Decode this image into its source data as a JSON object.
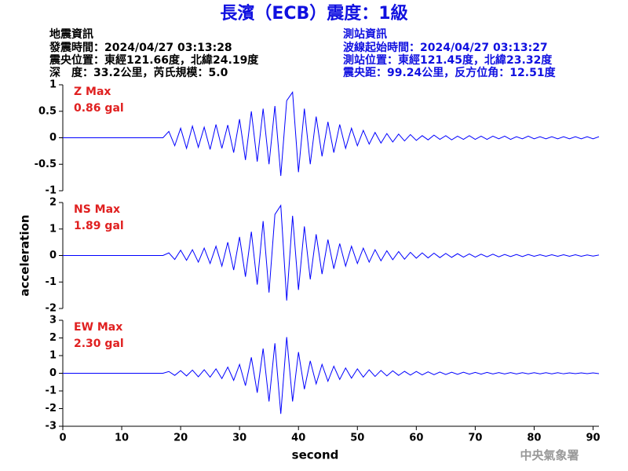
{
  "header": {
    "title": "長濱（ECB）震度：1級",
    "event": [
      "地震資訊",
      "發震時間：2024/04/27 03:13:28",
      "震央位置：東經121.66度，北緯24.19度",
      "深　度：33.2公里，芮氏規模：5.0"
    ],
    "station": [
      "測站資訊",
      "波線起始時間：2024/04/27 03:13:27",
      "測站位置：東經121.45度，北緯23.32度",
      "震央距：99.24公里，反方位角：12.51度"
    ]
  },
  "footer": "中央氣象署",
  "chart_data": [
    {
      "type": "line",
      "annotation": [
        "Z Max",
        "0.86 gal"
      ],
      "color": "#0000ff",
      "xlim": [
        0,
        91
      ],
      "ylim": [
        -1,
        1
      ],
      "yticks": [
        -1,
        -0.5,
        0,
        0.5,
        1
      ],
      "x": [
        0,
        1,
        2,
        3,
        4,
        5,
        6,
        7,
        8,
        9,
        10,
        11,
        12,
        13,
        14,
        15,
        16,
        17,
        18,
        19,
        20,
        21,
        22,
        23,
        24,
        25,
        26,
        27,
        28,
        29,
        30,
        31,
        32,
        33,
        34,
        35,
        36,
        37,
        38,
        39,
        40,
        41,
        42,
        43,
        44,
        45,
        46,
        47,
        48,
        49,
        50,
        51,
        52,
        53,
        54,
        55,
        56,
        57,
        58,
        59,
        60,
        61,
        62,
        63,
        64,
        65,
        66,
        67,
        68,
        69,
        70,
        71,
        72,
        73,
        74,
        75,
        76,
        77,
        78,
        79,
        80,
        81,
        82,
        83,
        84,
        85,
        86,
        87,
        88,
        89,
        90,
        91
      ],
      "values": [
        0,
        0,
        0,
        0,
        0,
        0,
        0,
        0,
        0,
        0,
        0,
        0,
        0,
        0,
        0,
        0,
        0,
        0,
        0.12,
        -0.15,
        0.18,
        -0.2,
        0.22,
        -0.18,
        0.2,
        -0.22,
        0.25,
        -0.2,
        0.24,
        -0.28,
        0.35,
        -0.42,
        0.5,
        -0.45,
        0.55,
        -0.5,
        0.6,
        -0.72,
        0.7,
        0.86,
        -0.65,
        0.55,
        -0.5,
        0.4,
        -0.35,
        0.3,
        -0.28,
        0.25,
        -0.2,
        0.18,
        -0.15,
        0.14,
        -0.12,
        0.1,
        -0.1,
        0.08,
        -0.08,
        0.07,
        -0.06,
        0.06,
        -0.05,
        0.04,
        -0.04,
        0.05,
        -0.03,
        0.04,
        -0.04,
        0.03,
        -0.03,
        0.04,
        -0.03,
        0.03,
        -0.03,
        0.03,
        -0.02,
        0.03,
        -0.03,
        0.02,
        -0.02,
        0.03,
        -0.02,
        0.02,
        -0.02,
        0.02,
        -0.02,
        0.02,
        -0.02,
        0.02,
        -0.02,
        0.02,
        -0.02,
        0.02
      ]
    },
    {
      "type": "line",
      "annotation": [
        "NS Max",
        "1.89 gal"
      ],
      "color": "#0000ff",
      "ylabel": "acceleration",
      "xlim": [
        0,
        91
      ],
      "ylim": [
        -2,
        2
      ],
      "yticks": [
        -2,
        -1,
        0,
        1,
        2
      ],
      "x": [
        0,
        1,
        2,
        3,
        4,
        5,
        6,
        7,
        8,
        9,
        10,
        11,
        12,
        13,
        14,
        15,
        16,
        17,
        18,
        19,
        20,
        21,
        22,
        23,
        24,
        25,
        26,
        27,
        28,
        29,
        30,
        31,
        32,
        33,
        34,
        35,
        36,
        37,
        38,
        39,
        40,
        41,
        42,
        43,
        44,
        45,
        46,
        47,
        48,
        49,
        50,
        51,
        52,
        53,
        54,
        55,
        56,
        57,
        58,
        59,
        60,
        61,
        62,
        63,
        64,
        65,
        66,
        67,
        68,
        69,
        70,
        71,
        72,
        73,
        74,
        75,
        76,
        77,
        78,
        79,
        80,
        81,
        82,
        83,
        84,
        85,
        86,
        87,
        88,
        89,
        90,
        91
      ],
      "values": [
        0,
        0,
        0,
        0,
        0,
        0,
        0,
        0,
        0,
        0,
        0,
        0,
        0,
        0,
        0,
        0,
        0,
        0,
        0.1,
        -0.15,
        0.2,
        -0.18,
        0.22,
        -0.25,
        0.28,
        -0.3,
        0.35,
        -0.4,
        0.5,
        -0.55,
        0.7,
        -0.8,
        0.9,
        -1.1,
        1.3,
        -1.4,
        1.55,
        1.89,
        -1.7,
        1.5,
        -1.3,
        1.1,
        -0.9,
        0.8,
        -0.7,
        0.6,
        -0.5,
        0.45,
        -0.4,
        0.35,
        -0.3,
        0.28,
        -0.25,
        0.22,
        -0.2,
        0.18,
        -0.16,
        0.15,
        -0.14,
        0.12,
        -0.1,
        0.1,
        -0.09,
        0.09,
        -0.08,
        0.08,
        -0.07,
        0.07,
        -0.06,
        0.06,
        -0.06,
        0.05,
        -0.05,
        0.05,
        -0.05,
        0.04,
        -0.04,
        0.04,
        -0.04,
        0.04,
        -0.03,
        0.03,
        -0.03,
        0.03,
        -0.03,
        0.03,
        -0.03,
        0.03,
        -0.03,
        0.02,
        -0.02,
        0.02
      ]
    },
    {
      "type": "line",
      "annotation": [
        "EW Max",
        "2.30 gal"
      ],
      "color": "#0000ff",
      "xlabel": "second",
      "xlim": [
        0,
        91
      ],
      "ylim": [
        -3,
        3
      ],
      "yticks": [
        -3,
        -2,
        -1,
        0,
        1,
        2,
        3
      ],
      "xticks": [
        0,
        10,
        20,
        30,
        40,
        50,
        60,
        70,
        80,
        90
      ],
      "x": [
        0,
        1,
        2,
        3,
        4,
        5,
        6,
        7,
        8,
        9,
        10,
        11,
        12,
        13,
        14,
        15,
        16,
        17,
        18,
        19,
        20,
        21,
        22,
        23,
        24,
        25,
        26,
        27,
        28,
        29,
        30,
        31,
        32,
        33,
        34,
        35,
        36,
        37,
        38,
        39,
        40,
        41,
        42,
        43,
        44,
        45,
        46,
        47,
        48,
        49,
        50,
        51,
        52,
        53,
        54,
        55,
        56,
        57,
        58,
        59,
        60,
        61,
        62,
        63,
        64,
        65,
        66,
        67,
        68,
        69,
        70,
        71,
        72,
        73,
        74,
        75,
        76,
        77,
        78,
        79,
        80,
        81,
        82,
        83,
        84,
        85,
        86,
        87,
        88,
        89,
        90,
        91
      ],
      "values": [
        0,
        0,
        0,
        0,
        0,
        0,
        0,
        0,
        0,
        0,
        0,
        0,
        0,
        0,
        0,
        0,
        0,
        0,
        0.1,
        -0.12,
        0.15,
        -0.15,
        0.18,
        -0.2,
        0.2,
        -0.22,
        0.25,
        -0.3,
        0.35,
        -0.4,
        0.5,
        -0.7,
        0.9,
        -1.1,
        1.4,
        -1.6,
        1.7,
        -2.3,
        2.05,
        -1.6,
        1.2,
        -0.9,
        0.7,
        -0.6,
        0.5,
        -0.45,
        0.4,
        -0.35,
        0.3,
        -0.28,
        0.25,
        -0.22,
        0.2,
        -0.18,
        0.16,
        -0.15,
        0.14,
        -0.12,
        0.11,
        -0.1,
        0.1,
        -0.09,
        0.08,
        -0.08,
        0.07,
        -0.07,
        0.06,
        -0.06,
        0.06,
        -0.05,
        0.05,
        -0.05,
        0.05,
        -0.04,
        0.04,
        -0.04,
        0.04,
        -0.04,
        0.03,
        -0.03,
        0.03,
        -0.03,
        0.03,
        -0.03,
        0.03,
        -0.03,
        0.02,
        -0.02,
        0.02,
        -0.02,
        0.02,
        -0.02
      ]
    }
  ]
}
